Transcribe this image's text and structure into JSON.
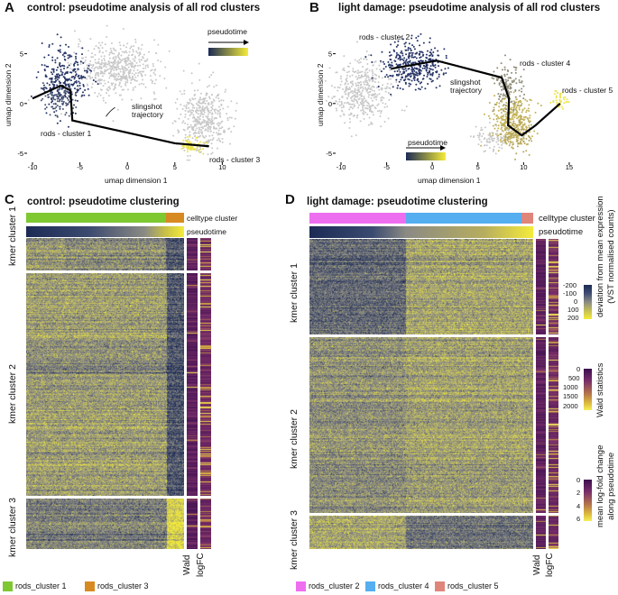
{
  "panelA": {
    "letter": "A",
    "title": "control: pseudotime analysis of all rod clusters",
    "xlabel": "umap dimension 1",
    "ylabel": "umap dimension 2",
    "xticks": [
      "-10",
      "-5",
      "0",
      "5",
      "10"
    ],
    "yticks": [
      "5",
      "0",
      "-5"
    ],
    "legend_title": "pseudotime",
    "labels": {
      "c1": "rods - cluster 1",
      "c3": "rods - cluster 3",
      "traj": "slingshot\ntrajectory"
    }
  },
  "panelB": {
    "letter": "B",
    "title": "light damage: pseudotime analysis of all rod clusters",
    "xlabel": "umap dimension 1",
    "ylabel": "umap dimension 2",
    "xticks": [
      "-10",
      "-5",
      "0",
      "5",
      "10",
      "15"
    ],
    "yticks": [
      "5",
      "0",
      "-5"
    ],
    "legend_title": "pseudotime",
    "labels": {
      "c2": "rods - cluster 2",
      "c4": "rods - cluster 4",
      "c5": "rods - cluster 5",
      "traj": "slingshot\ntrajectory"
    }
  },
  "panelC": {
    "letter": "C",
    "title": "control: pseudotime clustering",
    "row_labels": [
      "celltype cluster",
      "pseudotime"
    ],
    "kmer": [
      "kmer cluster 1",
      "kmer cluster 2",
      "kmer cluster 3"
    ],
    "col_labels": [
      "Wald",
      "logFC"
    ],
    "legend": [
      {
        "label": "rods_cluster 1",
        "color": "#7ec832"
      },
      {
        "label": "rods_cluster 3",
        "color": "#d88a22"
      }
    ]
  },
  "panelD": {
    "letter": "D",
    "title": "light damage: pseudotime clustering",
    "row_labels": [
      "celltype cluster",
      "pseudotime"
    ],
    "kmer": [
      "kmer cluster 1",
      "kmer cluster 2",
      "kmer cluster 3"
    ],
    "col_labels": [
      "Wald",
      "logFC"
    ],
    "legend": [
      {
        "label": "rods_cluster 2",
        "color": "#ee6ef0"
      },
      {
        "label": "rods_cluster 4",
        "color": "#55aef0"
      },
      {
        "label": "rods_cluster 5",
        "color": "#e0857a"
      }
    ]
  },
  "colorbars": {
    "deviation": {
      "title": "deviation from mean expression\n(VST normalised counts)",
      "ticks": [
        "-200",
        "-100",
        "0",
        "100",
        "200"
      ]
    },
    "wald": {
      "title": "Wald statistics",
      "ticks": [
        "0",
        "500",
        "1000",
        "1500",
        "2000"
      ]
    },
    "logfc": {
      "title": "mean log-fold change\nalong pseudotime",
      "ticks": [
        "0",
        "2",
        "4",
        "6"
      ]
    }
  }
}
